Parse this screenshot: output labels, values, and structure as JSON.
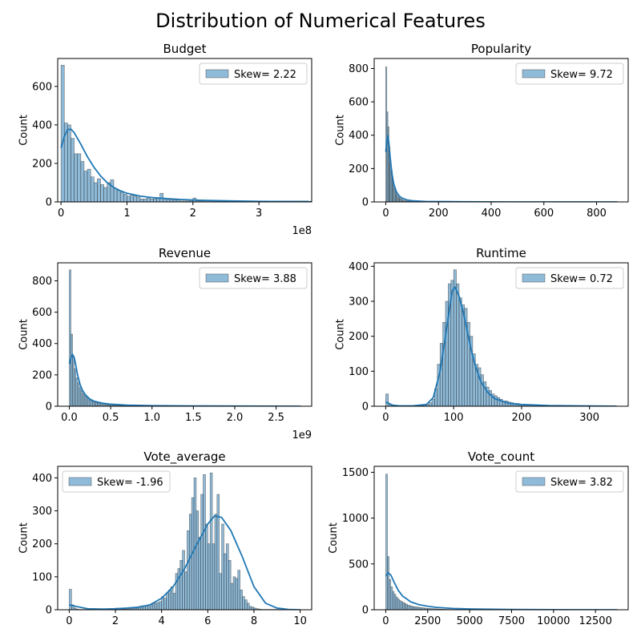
{
  "figure": {
    "title": "Distribution of Numerical Features",
    "bar_color": "#1f77b4",
    "bar_fill_opacity": 0.5,
    "kde_color": "#1f77b4"
  },
  "chart_data": [
    {
      "type": "bar",
      "title": "Budget",
      "ylabel": "Count",
      "xlabel": "",
      "xlim": [
        -5,
        380
      ],
      "ylim": [
        0,
        745
      ],
      "x_ticks": [
        0,
        100,
        200,
        300
      ],
      "x_tick_labels": [
        "0",
        "1",
        "2",
        "3"
      ],
      "x_offset_label": "1e8",
      "y_ticks": [
        0,
        200,
        400,
        600
      ],
      "y_tick_labels": [
        "0",
        "200",
        "400",
        "600"
      ],
      "legend": {
        "label": "Skew= 2.22",
        "position": "upper right"
      },
      "grid": false,
      "bins": {
        "start": 0,
        "width": 5,
        "counts": [
          710,
          410,
          400,
          330,
          250,
          250,
          210,
          160,
          170,
          130,
          100,
          120,
          90,
          75,
          100,
          115,
          70,
          60,
          50,
          40,
          30,
          35,
          30,
          25,
          15,
          15,
          20,
          15,
          15,
          20,
          45,
          20,
          10,
          10,
          10,
          10,
          5,
          5,
          5,
          5,
          20,
          5,
          5,
          5,
          5,
          5,
          5,
          5,
          5,
          5,
          5,
          5,
          5,
          5,
          5,
          5,
          5,
          5,
          5,
          5,
          5,
          5,
          5,
          5,
          5,
          5,
          5,
          5,
          5,
          5,
          5,
          5,
          5,
          5,
          5
        ]
      },
      "kde": [
        [
          0,
          280
        ],
        [
          5,
          340
        ],
        [
          10,
          375
        ],
        [
          15,
          378
        ],
        [
          20,
          360
        ],
        [
          30,
          300
        ],
        [
          40,
          235
        ],
        [
          50,
          180
        ],
        [
          60,
          135
        ],
        [
          70,
          100
        ],
        [
          80,
          75
        ],
        [
          90,
          58
        ],
        [
          100,
          45
        ],
        [
          120,
          30
        ],
        [
          140,
          22
        ],
        [
          160,
          17
        ],
        [
          180,
          13
        ],
        [
          200,
          10
        ],
        [
          230,
          7
        ],
        [
          260,
          5
        ],
        [
          300,
          3
        ],
        [
          340,
          2
        ],
        [
          380,
          1
        ]
      ]
    },
    {
      "type": "bar",
      "title": "Popularity",
      "ylabel": "Count",
      "xlabel": "",
      "xlim": [
        -44,
        920
      ],
      "ylim": [
        0,
        860
      ],
      "x_ticks": [
        0,
        200,
        400,
        600,
        800
      ],
      "x_tick_labels": [
        "0",
        "200",
        "400",
        "600",
        "800"
      ],
      "x_offset_label": "",
      "y_ticks": [
        0,
        200,
        400,
        600,
        800
      ],
      "y_tick_labels": [
        "0",
        "200",
        "400",
        "600",
        "800"
      ],
      "legend": {
        "label": "Skew= 9.72",
        "position": "upper right"
      },
      "grid": false,
      "bins": {
        "start": 0,
        "width": 4,
        "counts": [
          810,
          540,
          450,
          330,
          250,
          190,
          150,
          110,
          80,
          60,
          45,
          35,
          28,
          22,
          18,
          14,
          11,
          9,
          7,
          6,
          5,
          4,
          4,
          3,
          3,
          2,
          2,
          2,
          2,
          1,
          1,
          1,
          1,
          1,
          1,
          1,
          1,
          1,
          1,
          1
        ]
      },
      "kde": [
        [
          0,
          300
        ],
        [
          4,
          370
        ],
        [
          8,
          400
        ],
        [
          12,
          350
        ],
        [
          16,
          280
        ],
        [
          20,
          215
        ],
        [
          25,
          155
        ],
        [
          30,
          110
        ],
        [
          40,
          62
        ],
        [
          50,
          38
        ],
        [
          60,
          24
        ],
        [
          80,
          12
        ],
        [
          100,
          7
        ],
        [
          150,
          3
        ],
        [
          200,
          2
        ],
        [
          300,
          1
        ],
        [
          500,
          0
        ],
        [
          880,
          0
        ]
      ]
    },
    {
      "type": "bar",
      "title": "Revenue",
      "ylabel": "Count",
      "xlabel": "",
      "xlim": [
        -0.14,
        2.93
      ],
      "ylim": [
        0,
        915
      ],
      "x_ticks": [
        0,
        0.5,
        1.0,
        1.5,
        2.0,
        2.5
      ],
      "x_tick_labels": [
        "0.0",
        "0.5",
        "1.0",
        "1.5",
        "2.0",
        "2.5"
      ],
      "x_offset_label": "1e9",
      "y_ticks": [
        0,
        200,
        400,
        600,
        800
      ],
      "y_tick_labels": [
        "0",
        "200",
        "400",
        "600",
        "800"
      ],
      "legend": {
        "label": "Skew= 3.88",
        "position": "upper right"
      },
      "grid": false,
      "bins": {
        "start": 0,
        "width": 0.02,
        "counts": [
          870,
          460,
          320,
          240,
          180,
          150,
          120,
          100,
          80,
          70,
          60,
          50,
          40,
          35,
          30,
          25,
          22,
          20,
          18,
          15,
          13,
          12,
          11,
          10,
          9,
          8,
          7,
          6,
          6,
          5,
          5,
          4,
          4,
          4,
          3,
          3,
          3,
          3,
          2,
          2,
          2,
          2,
          2,
          2,
          2,
          2,
          2,
          2,
          2,
          2,
          1,
          1,
          1,
          1,
          1,
          1,
          1,
          1,
          1,
          1
        ]
      },
      "kde": [
        [
          0,
          270
        ],
        [
          0.02,
          310
        ],
        [
          0.04,
          330
        ],
        [
          0.06,
          310
        ],
        [
          0.08,
          260
        ],
        [
          0.1,
          200
        ],
        [
          0.13,
          140
        ],
        [
          0.16,
          100
        ],
        [
          0.2,
          70
        ],
        [
          0.25,
          45
        ],
        [
          0.3,
          32
        ],
        [
          0.4,
          20
        ],
        [
          0.5,
          13
        ],
        [
          0.7,
          7
        ],
        [
          1.0,
          4
        ],
        [
          1.5,
          2
        ],
        [
          2.0,
          1
        ],
        [
          2.8,
          0
        ]
      ]
    },
    {
      "type": "bar",
      "title": "Runtime",
      "ylabel": "Count",
      "xlabel": "",
      "xlim": [
        -17,
        357
      ],
      "ylim": [
        0,
        410
      ],
      "x_ticks": [
        0,
        100,
        200,
        300
      ],
      "x_tick_labels": [
        "0",
        "100",
        "200",
        "300"
      ],
      "x_offset_label": "",
      "y_ticks": [
        0,
        100,
        200,
        300,
        400
      ],
      "y_tick_labels": [
        "0",
        "100",
        "200",
        "300",
        "400"
      ],
      "legend": {
        "label": "Skew= 0.72",
        "position": "upper right"
      },
      "grid": false,
      "bins": {
        "start": 0,
        "width": 4,
        "counts": [
          35,
          5,
          1,
          1,
          1,
          1,
          1,
          1,
          1,
          1,
          1,
          1,
          1,
          2,
          3,
          5,
          10,
          20,
          50,
          120,
          180,
          240,
          300,
          350,
          360,
          390,
          350,
          310,
          290,
          280,
          240,
          200,
          150,
          120,
          110,
          90,
          70,
          55,
          45,
          35,
          30,
          25,
          20,
          15,
          15,
          12,
          10,
          8,
          8,
          6,
          5,
          5,
          4,
          4,
          3,
          3,
          3,
          2,
          2,
          2,
          2,
          2,
          2,
          1,
          1,
          1,
          1,
          1,
          1,
          1,
          1,
          1,
          1,
          1,
          1,
          1,
          1,
          1,
          1,
          1,
          1,
          1,
          1,
          1,
          1
        ]
      },
      "kde": [
        [
          0,
          12
        ],
        [
          5,
          8
        ],
        [
          10,
          3
        ],
        [
          20,
          1
        ],
        [
          40,
          1
        ],
        [
          60,
          5
        ],
        [
          70,
          25
        ],
        [
          80,
          100
        ],
        [
          88,
          200
        ],
        [
          94,
          280
        ],
        [
          98,
          330
        ],
        [
          102,
          340
        ],
        [
          108,
          315
        ],
        [
          114,
          270
        ],
        [
          120,
          215
        ],
        [
          126,
          160
        ],
        [
          132,
          115
        ],
        [
          140,
          70
        ],
        [
          150,
          40
        ],
        [
          160,
          22
        ],
        [
          180,
          9
        ],
        [
          200,
          5
        ],
        [
          240,
          2
        ],
        [
          280,
          1
        ],
        [
          340,
          0
        ]
      ]
    },
    {
      "type": "bar",
      "title": "Vote_average",
      "ylabel": "Count",
      "xlabel": "",
      "xlim": [
        -0.5,
        10.5
      ],
      "ylim": [
        0,
        435
      ],
      "x_ticks": [
        0,
        2,
        4,
        6,
        8,
        10
      ],
      "x_tick_labels": [
        "0",
        "2",
        "4",
        "6",
        "8",
        "10"
      ],
      "x_offset_label": "",
      "y_ticks": [
        0,
        100,
        200,
        300,
        400
      ],
      "y_tick_labels": [
        "0",
        "100",
        "200",
        "300",
        "400"
      ],
      "legend": {
        "label": "Skew= -1.96",
        "position": "upper left"
      },
      "grid": false,
      "bins": {
        "start": 0,
        "width": 0.1,
        "counts": [
          62,
          15,
          5,
          2,
          1,
          1,
          1,
          1,
          1,
          1,
          1,
          1,
          1,
          1,
          1,
          1,
          1,
          1,
          1,
          1,
          5,
          3,
          2,
          2,
          2,
          2,
          3,
          3,
          5,
          5,
          10,
          12,
          10,
          12,
          15,
          15,
          18,
          20,
          22,
          25,
          40,
          35,
          50,
          60,
          70,
          50,
          110,
          125,
          150,
          180,
          115,
          240,
          290,
          340,
          400,
          300,
          220,
          350,
          410,
          260,
          200,
          415,
          200,
          290,
          350,
          110,
          260,
          170,
          200,
          150,
          80,
          100,
          95,
          120,
          60,
          40,
          30,
          20,
          10,
          8,
          5,
          3,
          2,
          1,
          1,
          1,
          1,
          1,
          1,
          1,
          1
        ]
      },
      "kde": [
        [
          0,
          15
        ],
        [
          0.3,
          10
        ],
        [
          0.8,
          3
        ],
        [
          1.5,
          2
        ],
        [
          2.0,
          3
        ],
        [
          2.5,
          5
        ],
        [
          3.0,
          8
        ],
        [
          3.5,
          15
        ],
        [
          4.0,
          35
        ],
        [
          4.5,
          70
        ],
        [
          5.0,
          125
        ],
        [
          5.5,
          195
        ],
        [
          6.0,
          260
        ],
        [
          6.3,
          285
        ],
        [
          6.6,
          280
        ],
        [
          7.0,
          240
        ],
        [
          7.5,
          160
        ],
        [
          8.0,
          70
        ],
        [
          8.5,
          20
        ],
        [
          9.0,
          5
        ],
        [
          9.5,
          1
        ],
        [
          10,
          0
        ]
      ]
    },
    {
      "type": "bar",
      "title": "Vote_count",
      "ylabel": "Count",
      "xlabel": "",
      "xlim": [
        -690,
        14450
      ],
      "ylim": [
        0,
        1565
      ],
      "x_ticks": [
        0,
        2500,
        5000,
        7500,
        10000,
        12500
      ],
      "x_tick_labels": [
        "0",
        "2500",
        "5000",
        "7500",
        "10000",
        "12500"
      ],
      "x_offset_label": "",
      "y_ticks": [
        0,
        500,
        1000,
        1500
      ],
      "y_tick_labels": [
        "0",
        "500",
        "1000",
        "1500"
      ],
      "legend": {
        "label": "Skew= 3.82",
        "position": "upper right"
      },
      "grid": false,
      "bins": {
        "start": 0,
        "width": 100,
        "counts": [
          1480,
          580,
          330,
          250,
          200,
          170,
          140,
          120,
          100,
          90,
          80,
          70,
          60,
          50,
          45,
          40,
          35,
          32,
          30,
          28,
          25,
          22,
          20,
          18,
          16,
          14,
          13,
          12,
          11,
          10,
          9,
          8,
          7,
          6,
          5,
          5,
          4,
          4,
          3,
          3,
          3,
          2,
          2,
          2,
          2,
          2,
          2,
          1,
          1,
          1,
          1,
          1,
          1,
          1,
          1,
          1,
          1,
          1,
          1,
          1
        ]
      },
      "kde": [
        [
          0,
          370
        ],
        [
          150,
          400
        ],
        [
          300,
          380
        ],
        [
          500,
          300
        ],
        [
          750,
          210
        ],
        [
          1000,
          150
        ],
        [
          1500,
          85
        ],
        [
          2000,
          55
        ],
        [
          2500,
          38
        ],
        [
          3000,
          26
        ],
        [
          4000,
          14
        ],
        [
          5000,
          8
        ],
        [
          7500,
          3
        ],
        [
          10000,
          1
        ],
        [
          13800,
          0
        ]
      ]
    }
  ]
}
